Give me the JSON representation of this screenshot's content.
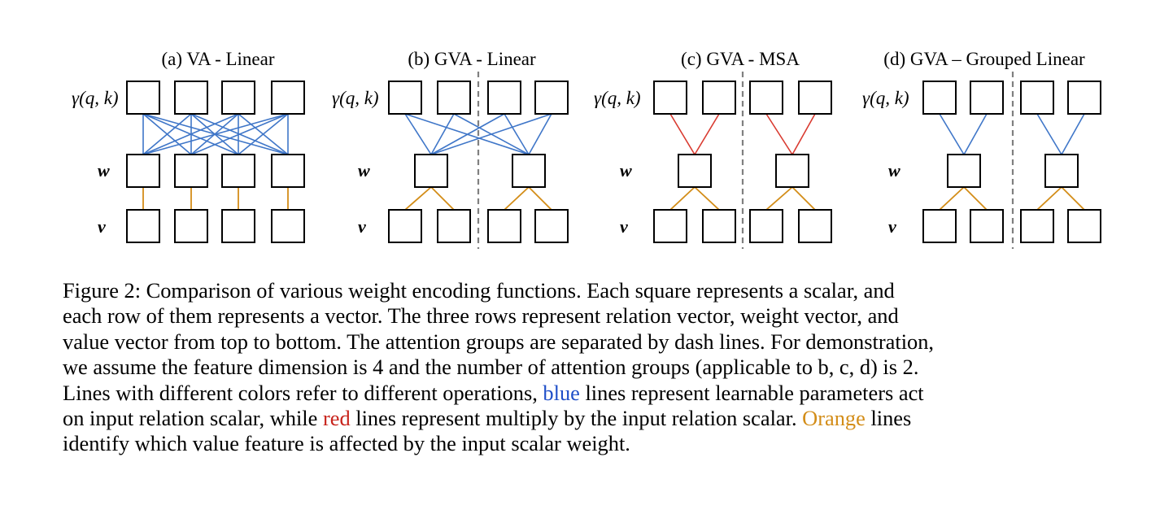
{
  "figure": {
    "panels": [
      {
        "id": "a",
        "title": "(a) VA - Linear"
      },
      {
        "id": "b",
        "title": "(b) GVA - Linear"
      },
      {
        "id": "c",
        "title": "(c) GVA - MSA"
      },
      {
        "id": "d",
        "title": "(d) GVA – Grouped Linear"
      }
    ],
    "row_labels": {
      "relation": "γ(q, k)",
      "weight": "w",
      "value": "v"
    },
    "feature_dimension": 4,
    "attention_groups": 2,
    "colors": {
      "blue": "#3f76c8",
      "red": "#d93a30",
      "orange": "#d38d18",
      "divider": "#808080"
    }
  },
  "caption": {
    "lines": [
      [
        {
          "text": "Figure 2: Comparison of various weight encoding functions. Each square represents a scalar, and"
        }
      ],
      [
        {
          "text": "each row of them represents a vector. The three rows represent relation vector, weight vector, and"
        }
      ],
      [
        {
          "text": "value vector from top to bottom. The attention groups are separated by dash lines. For demonstration,"
        }
      ],
      [
        {
          "text": "we assume the feature dimension is 4 and the number of attention groups (applicable to b, c, d) is 2."
        }
      ],
      [
        {
          "text": "Lines with different colors refer to different operations, "
        },
        {
          "text": "blue",
          "color": "#1f4fc8"
        },
        {
          "text": " lines represent learnable parameters act"
        }
      ],
      [
        {
          "text": "on input relation scalar, while "
        },
        {
          "text": "red",
          "color": "#c8241c"
        },
        {
          "text": " lines represent multiply by the input relation scalar. "
        },
        {
          "text": "Orange",
          "color": "#d38d18"
        },
        {
          "text": " lines"
        }
      ],
      [
        {
          "text": "identify which value feature is affected by the input scalar weight."
        }
      ]
    ]
  }
}
